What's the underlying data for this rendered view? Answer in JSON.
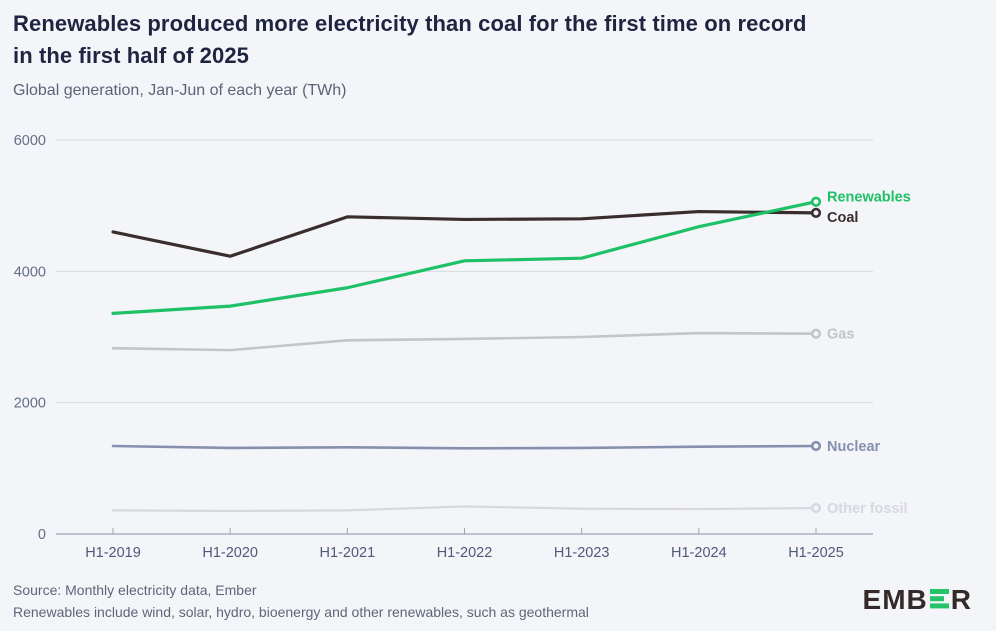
{
  "header": {
    "title_line1": "Renewables produced more electricity than coal for the first time on record",
    "title_line2": "in the first half of 2025",
    "subtitle": "Global generation, Jan-Jun of each year (TWh)"
  },
  "chart_data": {
    "type": "line",
    "title": "Renewables produced more electricity than coal for the first time on record in the first half of 2025",
    "subtitle": "Global generation, Jan-Jun of each year (TWh)",
    "unit": "TWh",
    "x": [
      "H1-2019",
      "H1-2020",
      "H1-2021",
      "H1-2022",
      "H1-2023",
      "H1-2024",
      "H1-2025"
    ],
    "series": [
      {
        "name": "Other fossil",
        "color": "#d7d8df",
        "stroke_width": 2.2,
        "label_dy": 0,
        "values": [
          360,
          350,
          360,
          420,
          385,
          380,
          395
        ]
      },
      {
        "name": "Nuclear",
        "color": "#8690ae",
        "stroke_width": 2.6,
        "label_dy": 0,
        "values": [
          1340,
          1310,
          1320,
          1305,
          1310,
          1330,
          1340
        ]
      },
      {
        "name": "Gas",
        "color": "#c3c5ca",
        "stroke_width": 2.6,
        "label_dy": 0,
        "values": [
          2830,
          2800,
          2950,
          2970,
          3000,
          3060,
          3050
        ]
      },
      {
        "name": "Coal",
        "color": "#3a2d2d",
        "stroke_width": 3.2,
        "label_dy": 4,
        "values": [
          4600,
          4230,
          4830,
          4790,
          4800,
          4910,
          4890
        ]
      },
      {
        "name": "Renewables",
        "color": "#1fc167",
        "stroke_width": 3.2,
        "label_dy": -5,
        "values": [
          3360,
          3470,
          3750,
          4160,
          4200,
          4680,
          5060
        ]
      }
    ],
    "ylim": [
      0,
      6000
    ],
    "yticks": [
      0,
      2000,
      4000,
      6000
    ],
    "ytick_labels": [
      "0",
      "2000",
      "4000",
      "6000"
    ],
    "grid": true,
    "legend_position": "right-inline-labels",
    "end_markers": "open-circle"
  },
  "footer": {
    "source": "Source: Monthly electricity data, Ember",
    "note": "Renewables include wind, solar, hydro, bioenergy and other renewables, such as geothermal",
    "logo_prefix": "EMB",
    "logo_suffix": "R"
  },
  "colors": {
    "background": "#f4f5f9",
    "title": "#1f2540",
    "subtitle": "#5a6478",
    "grid": "#d8dbe3",
    "axis": "#9ba4b6",
    "y_tick_label": "#646e88",
    "x_tick_label": "#4e5a78",
    "source_text": "#5d6679",
    "logo_dark": "#352a2a",
    "logo_green": "#25c468"
  }
}
